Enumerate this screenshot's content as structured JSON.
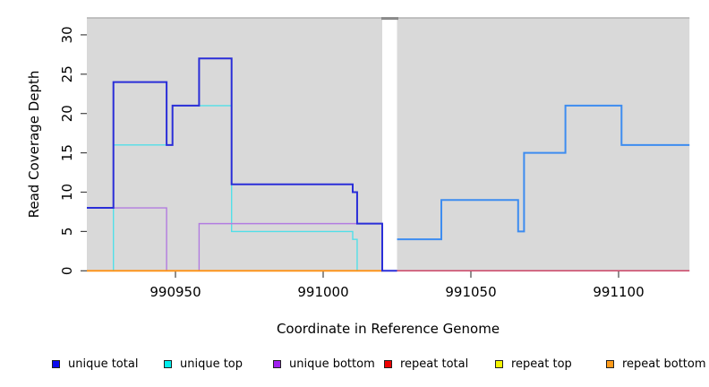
{
  "chart_data": {
    "type": "line",
    "subtype": "step-coverage",
    "title": "",
    "xlabel": "Coordinate in Reference Genome",
    "ylabel": "Read Coverage Depth",
    "xlim": [
      990920,
      991124
    ],
    "ylim": [
      0,
      32
    ],
    "x_ticks": [
      990950,
      991000,
      991050,
      991100
    ],
    "y_ticks": [
      0,
      5,
      10,
      15,
      20,
      25,
      30
    ],
    "grid": false,
    "panel_background": "#d9d9d9",
    "panel_top_border": "#b5b5b5",
    "gap_region": {
      "x_start": 991020,
      "x_end": 991025,
      "fill": "#ffffff",
      "top_bar_color": "#8a8a8a"
    },
    "series": [
      {
        "name": "unique-top",
        "legend": "unique top",
        "color": "#52dfe8",
        "width": 1.4,
        "steps": [
          [
            990920,
            0
          ],
          [
            990929,
            16
          ],
          [
            990949,
            21
          ],
          [
            990969,
            5
          ],
          [
            991010,
            4
          ],
          [
            991011.5,
            0
          ]
        ],
        "end": 991020
      },
      {
        "name": "unique-bottom",
        "legend": "unique bottom",
        "color": "#b27ce0",
        "width": 1.4,
        "steps": [
          [
            990920,
            8
          ],
          [
            990947,
            0
          ],
          [
            990958,
            6
          ]
        ],
        "end": 991020
      },
      {
        "name": "repeat-bottom-baseline-left",
        "legend": "repeat bottom",
        "color": "#ff9010",
        "width": 1.8,
        "steps": [
          [
            990920,
            0
          ]
        ],
        "end": 991020
      },
      {
        "name": "repeat-total-baseline-right",
        "legend": "repeat total",
        "color": "#cc4466",
        "width": 1.5,
        "steps": [
          [
            991025,
            0
          ]
        ],
        "end": 991124
      },
      {
        "name": "unique-total-left",
        "legend": "unique total",
        "color": "#2a2ed8",
        "width": 2,
        "steps": [
          [
            990920,
            8
          ],
          [
            990929,
            24
          ],
          [
            990947,
            16
          ],
          [
            990949,
            21
          ],
          [
            990958,
            27
          ],
          [
            990969,
            11
          ],
          [
            991010,
            10
          ],
          [
            991011.5,
            6
          ],
          [
            991020,
            0
          ]
        ],
        "end": 991025
      },
      {
        "name": "unique-total-right",
        "legend": "unique total",
        "color": "#3d8cf0",
        "width": 2,
        "steps": [
          [
            991025,
            4
          ],
          [
            991040,
            9
          ],
          [
            991066,
            5
          ],
          [
            991068,
            15
          ],
          [
            991082,
            21
          ],
          [
            991101,
            16
          ]
        ],
        "end": 991124
      }
    ],
    "legend": [
      {
        "label": "unique total",
        "color": "#0b0bee"
      },
      {
        "label": "unique top",
        "color": "#00eeee"
      },
      {
        "label": "unique bottom",
        "color": "#a020f0"
      },
      {
        "label": "repeat total",
        "color": "#ee0000"
      },
      {
        "label": "repeat top",
        "color": "#f5f500"
      },
      {
        "label": "repeat bottom",
        "color": "#ff9b1a"
      }
    ],
    "legend_position": "bottom"
  }
}
